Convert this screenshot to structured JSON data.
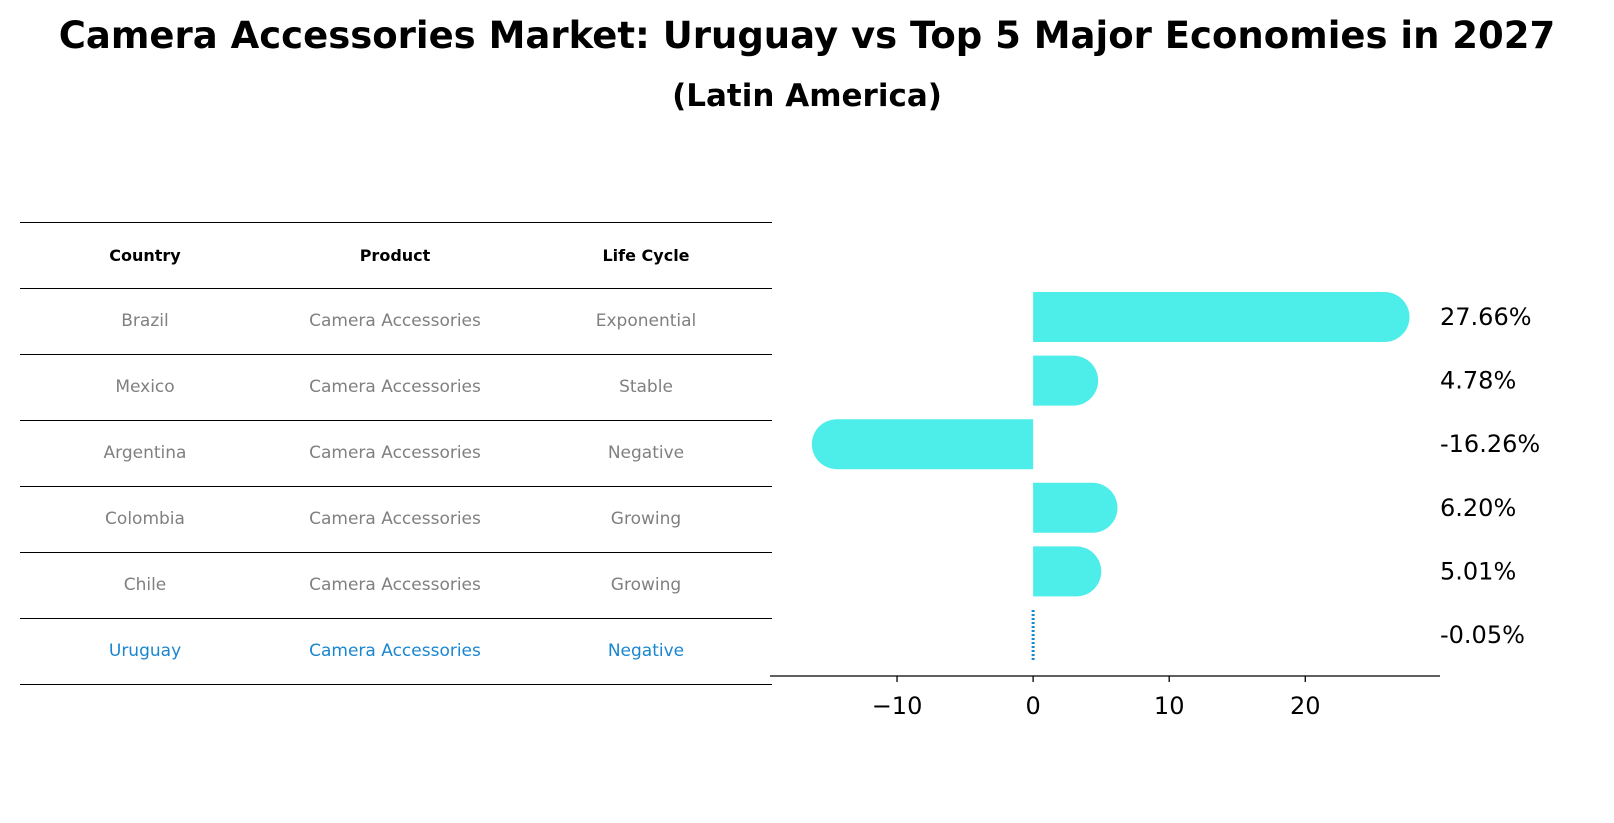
{
  "title": "Camera Accessories Market: Uruguay vs Top 5 Major Economies in 2027",
  "subtitle": "(Latin America)",
  "table": {
    "headers": [
      "Country",
      "Product",
      "Life Cycle"
    ],
    "rows": [
      [
        "Brazil",
        "Camera Accessories",
        "Exponential"
      ],
      [
        "Mexico",
        "Camera Accessories",
        "Stable"
      ],
      [
        "Argentina",
        "Camera Accessories",
        "Negative"
      ],
      [
        "Colombia",
        "Camera Accessories",
        "Growing"
      ],
      [
        "Chile",
        "Camera Accessories",
        "Growing"
      ],
      [
        "Uruguay",
        "Camera Accessories",
        "Negative"
      ]
    ],
    "row_color": "#808080",
    "highlight_row": 5,
    "highlight_color": "#1a86d0"
  },
  "chart_data": {
    "type": "bar",
    "orientation": "horizontal",
    "categories": [
      "Brazil",
      "Mexico",
      "Argentina",
      "Colombia",
      "Chile",
      "Uruguay"
    ],
    "values": [
      27.66,
      4.78,
      -16.26,
      6.2,
      5.01,
      -0.05
    ],
    "value_labels": [
      "27.66%",
      "4.78%",
      "-16.26%",
      "6.20%",
      "5.01%",
      "-0.05%"
    ],
    "bar_color": "#4deeea",
    "highlight_index": 5,
    "highlight_color": "#1a86d0",
    "xlim": [
      -18.6,
      29.9
    ],
    "xticks": [
      -10,
      0,
      10,
      20
    ],
    "xtick_labels": [
      "−10",
      "0",
      "10",
      "20"
    ],
    "xlabel": "",
    "ylabel": "",
    "grid": false
  }
}
